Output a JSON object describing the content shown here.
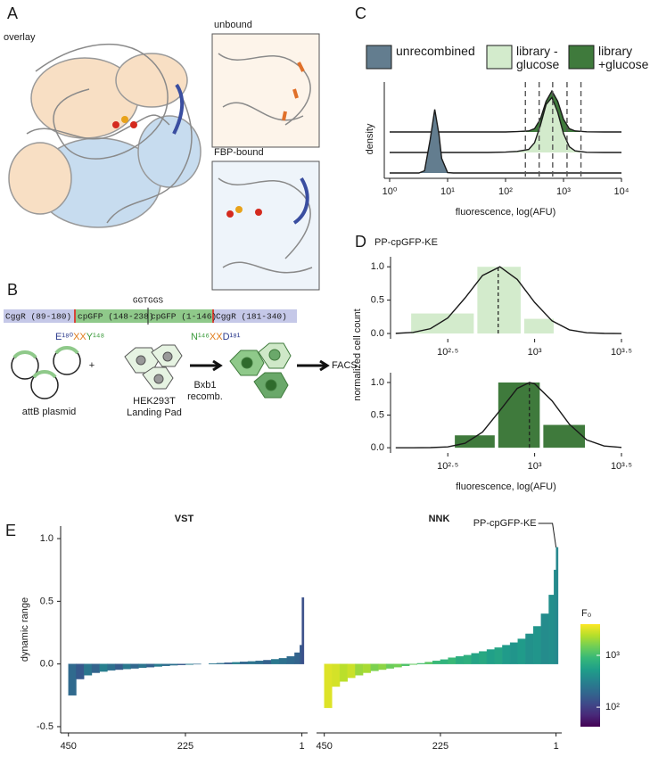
{
  "panels": {
    "a": "A",
    "b": "B",
    "c": "C",
    "d": "D",
    "e": "E"
  },
  "structure": {
    "overlay": "overlay",
    "unbound": "unbound",
    "bound": "FBP-bound"
  },
  "construct": {
    "linker": "GGTGGS",
    "segments": [
      "CggR (89-180)",
      "cpGFP (148-238)",
      "cpGFP (1-146)",
      "CggR (181-340)"
    ],
    "left_junction": [
      "E¹⁸⁰",
      "XX",
      "Y¹⁴⁸"
    ],
    "right_junction": [
      "N¹⁴⁶",
      "XX",
      "D¹⁸¹"
    ],
    "plasmid": "attB plasmid",
    "plus": "+",
    "cells": [
      "HEK293T",
      "Landing Pad"
    ],
    "recombination": [
      "Bxb1",
      "recomb."
    ],
    "sort": "FACS"
  },
  "chart_data": [
    {
      "type": "ridgeline",
      "ylabel": "density",
      "xlabel": "fluorescence, log(AFU)",
      "xscale": "log",
      "xlim": [
        1,
        10000
      ],
      "xticks": [
        {
          "value": 1,
          "label": "10⁰"
        },
        {
          "value": 10,
          "label": "10¹"
        },
        {
          "value": 100,
          "label": "10²"
        },
        {
          "value": 1000,
          "label": "10³"
        },
        {
          "value": 10000,
          "label": "10⁴"
        }
      ],
      "x": [
        1,
        2,
        3.2,
        4,
        5,
        6,
        7.1,
        7.9,
        10,
        12.6,
        20,
        50,
        100,
        158,
        251,
        316,
        398,
        501,
        631,
        794,
        1000,
        1259,
        1585,
        2512,
        5012,
        10000
      ],
      "series": [
        {
          "name": "unrecombined",
          "color": "#637d8f",
          "values": [
            0,
            0,
            0,
            0.11,
            1.62,
            3.1,
            1.88,
            0.71,
            0.02,
            0,
            0,
            0,
            0,
            0,
            0,
            0,
            0,
            0,
            0,
            0,
            0,
            0,
            0,
            0,
            0,
            0
          ]
        },
        {
          "name": "library -glucose",
          "color": "#d3ebcc",
          "values": [
            0,
            0,
            0,
            0,
            0,
            0,
            0,
            0,
            0,
            0,
            0,
            0,
            0.02,
            0.05,
            0.15,
            0.47,
            1.31,
            2.34,
            2.68,
            1.96,
            0.92,
            0.28,
            0.08,
            0.01,
            0,
            0
          ]
        },
        {
          "name": "library +glucose",
          "color": "#3f7a3c",
          "values": [
            0,
            0,
            0,
            0,
            0,
            0,
            0,
            0,
            0,
            0,
            0,
            0,
            0,
            0.02,
            0.05,
            0.16,
            0.62,
            1.5,
            2.0,
            1.5,
            0.62,
            0.16,
            0.05,
            0.01,
            0,
            0
          ]
        }
      ],
      "gates": [
        220,
        380,
        650,
        1150,
        2000
      ]
    },
    {
      "type": "histogram",
      "title": "PP-cpGFP-KE",
      "xscale": "log",
      "xlim": [
        148,
        3162.3
      ],
      "xticks": [
        {
          "value": 316.2,
          "label": "10²·⁵"
        },
        {
          "value": 1000,
          "label": "10³"
        },
        {
          "value": 3162.3,
          "label": "10³·⁵"
        }
      ],
      "ylim": [
        -0.08,
        1.15
      ],
      "yticks": [
        {
          "value": 0,
          "label": "0.0"
        },
        0.5,
        {
          "value": 1,
          "label": "1.0"
        }
      ],
      "bins": [
        190,
        457,
        851,
        1318
      ],
      "values": [
        0.3,
        1.0,
        0.22
      ],
      "color": "#d3ebcc",
      "median": 617,
      "fit": {
        "x": [
          158.5,
          199.5,
          251.2,
          316.2,
          398.1,
          501.2,
          631,
          794.3,
          1000,
          1258.9,
          1584.9,
          1995.3,
          2511.9,
          3162.3
        ],
        "values": [
          0.002,
          0.016,
          0.072,
          0.233,
          0.535,
          0.87,
          1.0,
          0.81,
          0.466,
          0.19,
          0.055,
          0.011,
          0.002,
          0
        ]
      }
    },
    {
      "type": "histogram",
      "ylabel": "normalized cell count",
      "xlabel": "fluorescence, log(AFU)",
      "xscale": "log",
      "xlim": [
        148,
        3162.3
      ],
      "xticks": [
        {
          "value": 316.2,
          "label": "10²·⁵"
        },
        {
          "value": 1000,
          "label": "10³"
        },
        {
          "value": 3162.3,
          "label": "10³·⁵"
        }
      ],
      "ylim": [
        -0.08,
        1.15
      ],
      "yticks": [
        {
          "value": 0,
          "label": "0.0"
        },
        0.5,
        {
          "value": 1,
          "label": "1.0"
        }
      ],
      "bins": [
        339,
        603,
        1096,
        1995
      ],
      "values": [
        0.19,
        1.0,
        0.35
      ],
      "color": "#3f7a3c",
      "median": 933.3,
      "fit": {
        "x": [
          158.5,
          199.5,
          251.2,
          316.2,
          398.1,
          501.2,
          631,
          794.3,
          933.3,
          1000,
          1258.9,
          1584.9,
          1995.3,
          2511.9,
          3162.3
        ],
        "values": [
          0,
          0,
          0.002,
          0.013,
          0.069,
          0.24,
          0.57,
          0.91,
          1.0,
          0.98,
          0.72,
          0.36,
          0.12,
          0.027,
          0.004
        ]
      }
    },
    {
      "type": "waterfall",
      "title": "VST",
      "ylabel": "dynamic range",
      "xlim": [
        465,
        -10
      ],
      "xticks": [
        450,
        225,
        1
      ],
      "ylim": [
        -0.55,
        1.1
      ],
      "yticks": [
        -0.5,
        {
          "value": 0,
          "label": "0.0"
        },
        0.5,
        {
          "value": 1,
          "label": "1.0"
        }
      ],
      "x": [
        450,
        435,
        420,
        405,
        390,
        375,
        360,
        345,
        330,
        315,
        300,
        285,
        270,
        255,
        240,
        225,
        210,
        195,
        180,
        165,
        150,
        135,
        120,
        105,
        90,
        75,
        60,
        45,
        30,
        15,
        5,
        1
      ],
      "values": [
        -0.25,
        -0.12,
        -0.09,
        -0.07,
        -0.06,
        -0.05,
        -0.045,
        -0.04,
        -0.035,
        -0.03,
        -0.025,
        -0.02,
        -0.015,
        -0.01,
        -0.008,
        -0.005,
        -0.002,
        0,
        0.003,
        0.006,
        0.01,
        0.013,
        0.017,
        0.02,
        0.025,
        0.03,
        0.037,
        0.045,
        0.06,
        0.09,
        0.15,
        0.53
      ],
      "f0": [
        200,
        150,
        250,
        180,
        300,
        220,
        160,
        260,
        190,
        240,
        170,
        280,
        210,
        230,
        150,
        270,
        200,
        180,
        250,
        220,
        160,
        300,
        190,
        240,
        210,
        170,
        260,
        230,
        200,
        180,
        150,
        130
      ],
      "colormap": "viridis",
      "f0lim": [
        42,
        4000
      ],
      "f0scale": "log"
    },
    {
      "type": "waterfall",
      "title": "NNK",
      "annotation": "PP-cpGFP-KE",
      "xlim": [
        465,
        -10
      ],
      "xticks": [
        450,
        225,
        1
      ],
      "ylim": [
        -0.55,
        1.1
      ],
      "x": [
        450,
        435,
        420,
        405,
        390,
        375,
        360,
        345,
        330,
        315,
        300,
        285,
        270,
        255,
        240,
        225,
        210,
        195,
        180,
        165,
        150,
        135,
        120,
        105,
        90,
        75,
        60,
        45,
        30,
        15,
        5,
        1
      ],
      "values": [
        -0.35,
        -0.18,
        -0.14,
        -0.11,
        -0.09,
        -0.07,
        -0.055,
        -0.045,
        -0.035,
        -0.025,
        -0.015,
        -0.005,
        0.005,
        0.015,
        0.025,
        0.035,
        0.05,
        0.06,
        0.07,
        0.085,
        0.1,
        0.115,
        0.13,
        0.15,
        0.17,
        0.2,
        0.24,
        0.3,
        0.4,
        0.55,
        0.75,
        0.93
      ],
      "f0": [
        3200,
        3000,
        2500,
        2800,
        2000,
        2200,
        1600,
        1800,
        1400,
        1500,
        1100,
        1300,
        1000,
        1200,
        900,
        800,
        900,
        700,
        750,
        600,
        650,
        550,
        600,
        500,
        450,
        500,
        420,
        450,
        380,
        400,
        380,
        350
      ],
      "colormap": "viridis",
      "f0lim": [
        42,
        4000
      ],
      "f0scale": "log",
      "colorbar": {
        "title": "F₀",
        "ticks": [
          {
            "value": 100,
            "label": "10²"
          },
          {
            "value": 1000,
            "label": "10³"
          }
        ]
      }
    }
  ]
}
